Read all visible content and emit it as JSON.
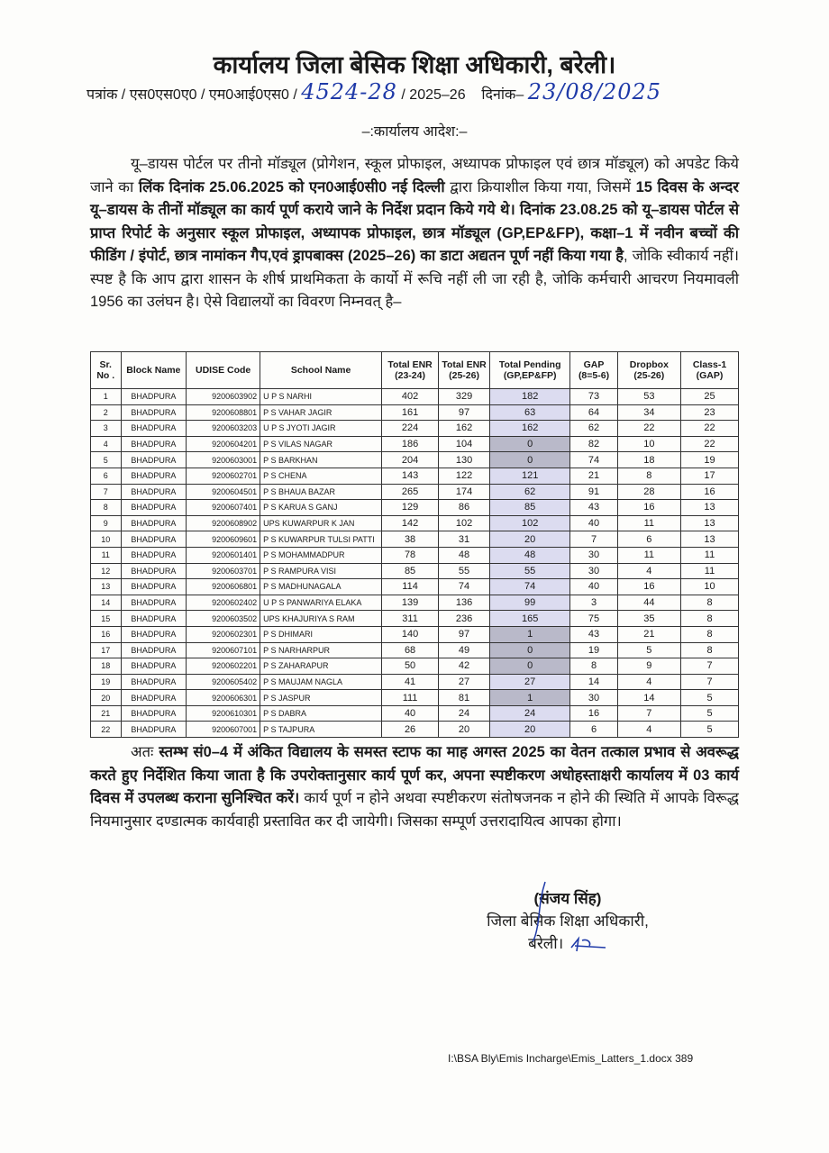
{
  "header": {
    "title": "कार्यालय जिला बेसिक शिक्षा अधिकारी, बरेली।",
    "ref_prefix": "पत्रांक / एस0एस0ए0 / एम0आई0एस0 / ",
    "ref_number_handwritten": "4524-28",
    "ref_year": " / 2025–26",
    "date_label": "दिनांक–",
    "date_handwritten": "23/08/2025",
    "order_heading": "–:कार्यालय आदेश:–"
  },
  "para1": [
    {
      "text": "यू–डायस पोर्टल पर तीनो मॉड्यूल (प्रोगेशन, स्कूल प्रोफाइल, अध्यापक प्रोफाइल एवं छात्र मॉड्यूल) को अपडेट किये जाने का ",
      "bold": false
    },
    {
      "text": "लिंक दिनांक 25.06.2025 को एन0आई0सी0 नई दिल्ली",
      "bold": true
    },
    {
      "text": " द्वारा क्रियाशील किया गया, जिसमें ",
      "bold": false
    },
    {
      "text": "15 दिवस के अन्दर यू–डायस के तीनों मॉड्यूल का कार्य पूर्ण कराये जाने के निर्देश प्रदान किये गये थे। दिनांक 23.08.25 को यू–डायस पोर्टल से प्राप्त रिपोर्ट के अनुसार स्कूल प्रोफाइल, अध्यापक प्रोफाइल, छात्र मॉड्यूल (GP,EP&FP), कक्षा–1 में नवीन बच्चों की फीडिंग / इंपोर्ट, छात्र नामांकन गैप,एवं ड्रापबाक्स (2025–26) का डाटा अद्यतन पूर्ण नहीं किया गया है",
      "bold": true
    },
    {
      "text": ", जोकि स्वीकार्य नहीं। स्पष्ट है कि आप द्वारा शासन के शीर्ष प्राथमिकता के कार्यो में रूचि नहीं ली जा रही है, जोकि कर्मचारी आचरण नियमावली 1956 का उलंघन है। ऐसे विद्यालयों का विवरण निम्नवत् है–",
      "bold": false
    }
  ],
  "table": {
    "headers": [
      "Sr. No .",
      "Block Name",
      "UDISE Code",
      "School Name",
      "Total ENR (23-24)",
      "Total ENR (25-26)",
      "Total Pending (GP,EP&FP)",
      "GAP (8=5-6)",
      "Dropbox (25-26)",
      "Class-1 (GAP)"
    ],
    "pending_color": "#dcdcf0",
    "pending_low_color": "#b9b9c9",
    "rows": [
      [
        "1",
        "BHADPURA",
        "9200603902",
        "U P S NARHI",
        "402",
        "329",
        "182",
        "73",
        "53",
        "25"
      ],
      [
        "2",
        "BHADPURA",
        "9200608801",
        "P S VAHAR JAGIR",
        "161",
        "97",
        "63",
        "64",
        "34",
        "23"
      ],
      [
        "3",
        "BHADPURA",
        "9200603203",
        "U P S JYOTI JAGIR",
        "224",
        "162",
        "162",
        "62",
        "22",
        "22"
      ],
      [
        "4",
        "BHADPURA",
        "9200604201",
        "P S VILAS NAGAR",
        "186",
        "104",
        "0",
        "82",
        "10",
        "22"
      ],
      [
        "5",
        "BHADPURA",
        "9200603001",
        "P S BARKHAN",
        "204",
        "130",
        "0",
        "74",
        "18",
        "19"
      ],
      [
        "6",
        "BHADPURA",
        "9200602701",
        "P S CHENA",
        "143",
        "122",
        "121",
        "21",
        "8",
        "17"
      ],
      [
        "7",
        "BHADPURA",
        "9200604501",
        "P S BHAUA BAZAR",
        "265",
        "174",
        "62",
        "91",
        "28",
        "16"
      ],
      [
        "8",
        "BHADPURA",
        "9200607401",
        "P S KARUA S GANJ",
        "129",
        "86",
        "85",
        "43",
        "16",
        "13"
      ],
      [
        "9",
        "BHADPURA",
        "9200608902",
        "UPS KUWARPUR K JAN",
        "142",
        "102",
        "102",
        "40",
        "11",
        "13"
      ],
      [
        "10",
        "BHADPURA",
        "9200609601",
        "P S KUWARPUR TULSI PATTI",
        "38",
        "31",
        "20",
        "7",
        "6",
        "13"
      ],
      [
        "11",
        "BHADPURA",
        "9200601401",
        "P S MOHAMMADPUR",
        "78",
        "48",
        "48",
        "30",
        "11",
        "11"
      ],
      [
        "12",
        "BHADPURA",
        "9200603701",
        "P S RAMPURA VISI",
        "85",
        "55",
        "55",
        "30",
        "4",
        "11"
      ],
      [
        "13",
        "BHADPURA",
        "9200606801",
        "P S MADHUNAGALA",
        "114",
        "74",
        "74",
        "40",
        "16",
        "10"
      ],
      [
        "14",
        "BHADPURA",
        "9200602402",
        "U P S PANWARIYA ELAKA",
        "139",
        "136",
        "99",
        "3",
        "44",
        "8"
      ],
      [
        "15",
        "BHADPURA",
        "9200603502",
        "UPS KHAJURIYA S RAM",
        "311",
        "236",
        "165",
        "75",
        "35",
        "8"
      ],
      [
        "16",
        "BHADPURA",
        "9200602301",
        "P S DHIMARI",
        "140",
        "97",
        "1",
        "43",
        "21",
        "8"
      ],
      [
        "17",
        "BHADPURA",
        "9200607101",
        "P S NARHARPUR",
        "68",
        "49",
        "0",
        "19",
        "5",
        "8"
      ],
      [
        "18",
        "BHADPURA",
        "9200602201",
        "P S ZAHARAPUR",
        "50",
        "42",
        "0",
        "8",
        "9",
        "7"
      ],
      [
        "19",
        "BHADPURA",
        "9200605402",
        "P S MAUJAM NAGLA",
        "41",
        "27",
        "27",
        "14",
        "4",
        "7"
      ],
      [
        "20",
        "BHADPURA",
        "9200606301",
        "P S JASPUR",
        "111",
        "81",
        "1",
        "30",
        "14",
        "5"
      ],
      [
        "21",
        "BHADPURA",
        "9200610301",
        "P S DABRA",
        "40",
        "24",
        "24",
        "16",
        "7",
        "5"
      ],
      [
        "22",
        "BHADPURA",
        "9200607001",
        "P S TAJPURA",
        "26",
        "20",
        "20",
        "6",
        "4",
        "5"
      ]
    ]
  },
  "para2": [
    {
      "text": "अतः ",
      "bold": false
    },
    {
      "text": "स्तम्भ सं0–4 में अंकित विद्यालय के समस्त स्टाफ का माह अगस्त 2025 का वेतन तत्काल प्रभाव से अवरूद्ध करते हुए निर्देशित किया जाता है कि उपरोक्तानुसार कार्य पूर्ण कर, अपना स्पष्टीकरण अधोहस्ताक्षरी कार्यालय में 03 कार्य दिवस में उपलब्ध कराना सुनिश्चित करें।",
      "bold": true
    },
    {
      "text": " कार्य पूर्ण न होने अथवा स्पष्टीकरण संतोषजनक न होने की स्थिति में आपके विरूद्ध नियमानुसार दण्डात्मक कार्यवाही प्रस्तावित कर दी जायेगी। जिसका सम्पूर्ण उत्तरादायित्व आपका होगा।",
      "bold": false
    }
  ],
  "signature": {
    "name": "(संजय सिंह)",
    "designation": "जिला बेसिक शिक्षा अधिकारी,",
    "place": "बरेली।",
    "ink_color": "#1f3aa8"
  },
  "footer": {
    "file_path": "I:\\BSA Bly\\Emis Incharge\\Emis_Latters_1.docx 389"
  }
}
